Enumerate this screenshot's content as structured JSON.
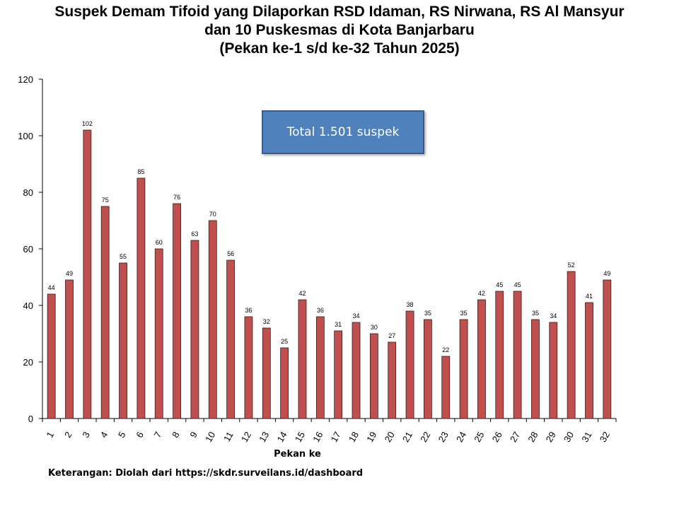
{
  "chart_data": {
    "type": "bar",
    "title": [
      "Suspek Demam Tifoid yang Dilaporkan RSD Idaman, RS Nirwana, RS Al Mansyur",
      "dan 10 Puskesmas di Kota Banjarbaru",
      "(Pekan ke-1 s/d ke-32 Tahun 2025)"
    ],
    "xlabel": "Pekan ke",
    "ylabel": "",
    "ylim": [
      0,
      120
    ],
    "yticks": [
      0,
      20,
      40,
      60,
      80,
      100,
      120
    ],
    "categories": [
      "1",
      "2",
      "3",
      "4",
      "5",
      "6",
      "7",
      "8",
      "9",
      "10",
      "11",
      "12",
      "13",
      "14",
      "15",
      "16",
      "17",
      "18",
      "19",
      "20",
      "21",
      "22",
      "23",
      "24",
      "25",
      "26",
      "27",
      "28",
      "29",
      "30",
      "31",
      "32"
    ],
    "values": [
      44,
      49,
      102,
      75,
      55,
      85,
      60,
      76,
      63,
      70,
      56,
      36,
      32,
      25,
      42,
      36,
      31,
      34,
      30,
      27,
      38,
      35,
      22,
      35,
      42,
      45,
      45,
      35,
      34,
      52,
      41,
      49
    ],
    "bar_color": "#c0504d",
    "grid": false,
    "annotation": "Total 1.501 suspek",
    "note": "Keterangan: Diolah dari https://skdr.surveilans.id/dashboard"
  }
}
